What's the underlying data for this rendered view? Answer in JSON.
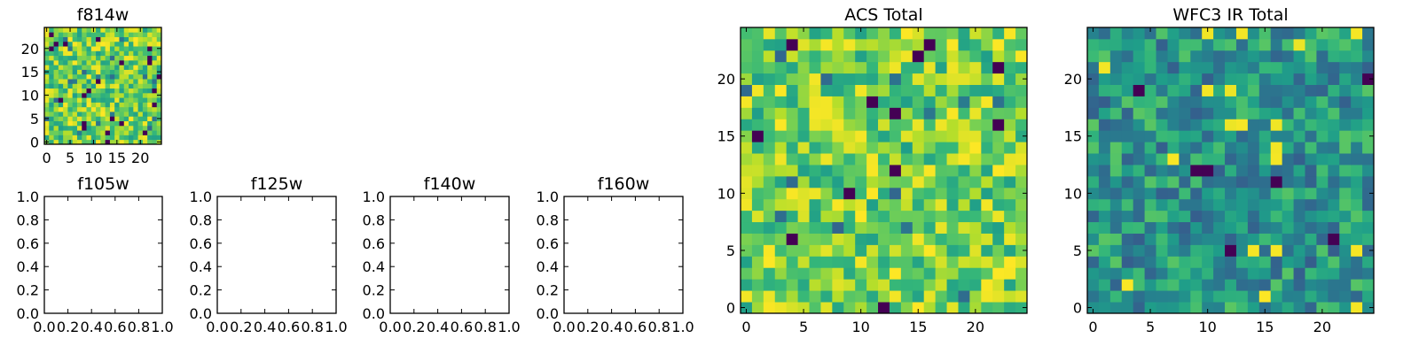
{
  "chart_data": [
    {
      "type": "heatmap",
      "title": "f814w",
      "grid_size": [
        25,
        25
      ],
      "xlim": [
        -0.5,
        24.5
      ],
      "ylim": [
        -0.5,
        24.5
      ],
      "xticks": [
        0,
        5,
        10,
        15,
        20
      ],
      "yticks": [
        0,
        5,
        10,
        15,
        20
      ],
      "colormap": "viridis",
      "seed": 814,
      "mean": 0.78,
      "spread": 0.14
    },
    {
      "type": "empty",
      "title": "f105w",
      "xlim": [
        0.0,
        1.0
      ],
      "ylim": [
        0.0,
        1.0
      ],
      "xticks": [
        "0.0",
        "0.2",
        "0.4",
        "0.6",
        "0.8",
        "1.0"
      ],
      "yticks": [
        "0.0",
        "0.2",
        "0.4",
        "0.6",
        "0.8",
        "1.0"
      ]
    },
    {
      "type": "empty",
      "title": "f125w",
      "xlim": [
        0.0,
        1.0
      ],
      "ylim": [
        0.0,
        1.0
      ],
      "xticks": [
        "0.0",
        "0.2",
        "0.4",
        "0.6",
        "0.8",
        "1.0"
      ],
      "yticks": [
        "0.0",
        "0.2",
        "0.4",
        "0.6",
        "0.8",
        "1.0"
      ]
    },
    {
      "type": "empty",
      "title": "f140w",
      "xlim": [
        0.0,
        1.0
      ],
      "ylim": [
        0.0,
        1.0
      ],
      "xticks": [
        "0.0",
        "0.2",
        "0.4",
        "0.6",
        "0.8",
        "1.0"
      ],
      "yticks": [
        "0.0",
        "0.2",
        "0.4",
        "0.6",
        "0.8",
        "1.0"
      ]
    },
    {
      "type": "empty",
      "title": "f160w",
      "xlim": [
        0.0,
        1.0
      ],
      "ylim": [
        0.0,
        1.0
      ],
      "xticks": [
        "0.0",
        "0.2",
        "0.4",
        "0.6",
        "0.8",
        "1.0"
      ],
      "yticks": [
        "0.0",
        "0.2",
        "0.4",
        "0.6",
        "0.8",
        "1.0"
      ]
    },
    {
      "type": "heatmap",
      "title": "ACS Total",
      "grid_size": [
        25,
        25
      ],
      "xlim": [
        -0.5,
        24.5
      ],
      "ylim": [
        -0.5,
        24.5
      ],
      "xticks": [
        0,
        5,
        10,
        15,
        20
      ],
      "yticks": [
        0,
        5,
        10,
        15,
        20
      ],
      "colormap": "viridis",
      "seed": 2024,
      "mean": 0.78,
      "spread": 0.14
    },
    {
      "type": "heatmap",
      "title": "WFC3 IR Total",
      "grid_size": [
        25,
        25
      ],
      "xlim": [
        -0.5,
        24.5
      ],
      "ylim": [
        -0.5,
        24.5
      ],
      "xticks": [
        0,
        5,
        10,
        15,
        20
      ],
      "yticks": [
        0,
        5,
        10,
        15,
        20
      ],
      "colormap": "viridis",
      "seed": 3160,
      "mean": 0.52,
      "spread": 0.14
    }
  ]
}
